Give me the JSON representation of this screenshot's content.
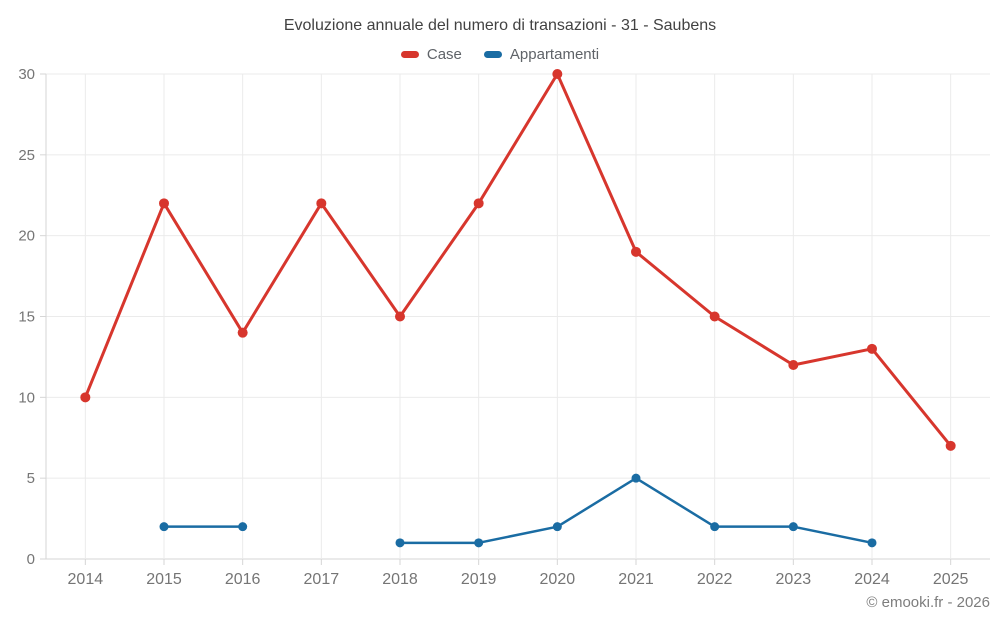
{
  "chart_data": {
    "type": "line",
    "title": "Evoluzione annuale del numero di transazioni - 31 - Saubens",
    "categories": [
      "2014",
      "2015",
      "2016",
      "2017",
      "2018",
      "2019",
      "2020",
      "2021",
      "2022",
      "2023",
      "2024",
      "2025"
    ],
    "series": [
      {
        "name": "Case",
        "color": "#d7362d",
        "values": [
          10,
          22,
          14,
          22,
          15,
          22,
          30,
          19,
          15,
          12,
          13,
          7
        ]
      },
      {
        "name": "Appartamenti",
        "color": "#1a6ca3",
        "values": [
          null,
          2,
          2,
          null,
          1,
          1,
          2,
          5,
          2,
          2,
          1,
          null
        ]
      }
    ],
    "xlabel": "",
    "ylabel": "",
    "ylim": [
      0,
      30
    ],
    "yticks": [
      0,
      5,
      10,
      15,
      20,
      25,
      30
    ],
    "grid": true,
    "legend_position": "top"
  },
  "footer": {
    "copyright": "© emooki.fr - 2026"
  },
  "colors": {
    "background": "#ffffff",
    "grid_line": "#ebebeb",
    "axis_line": "#d6d6d6",
    "tick_label": "#757575",
    "title_text": "#424242",
    "legend_text": "#5f6368",
    "footer_text": "#7d7d7d"
  }
}
